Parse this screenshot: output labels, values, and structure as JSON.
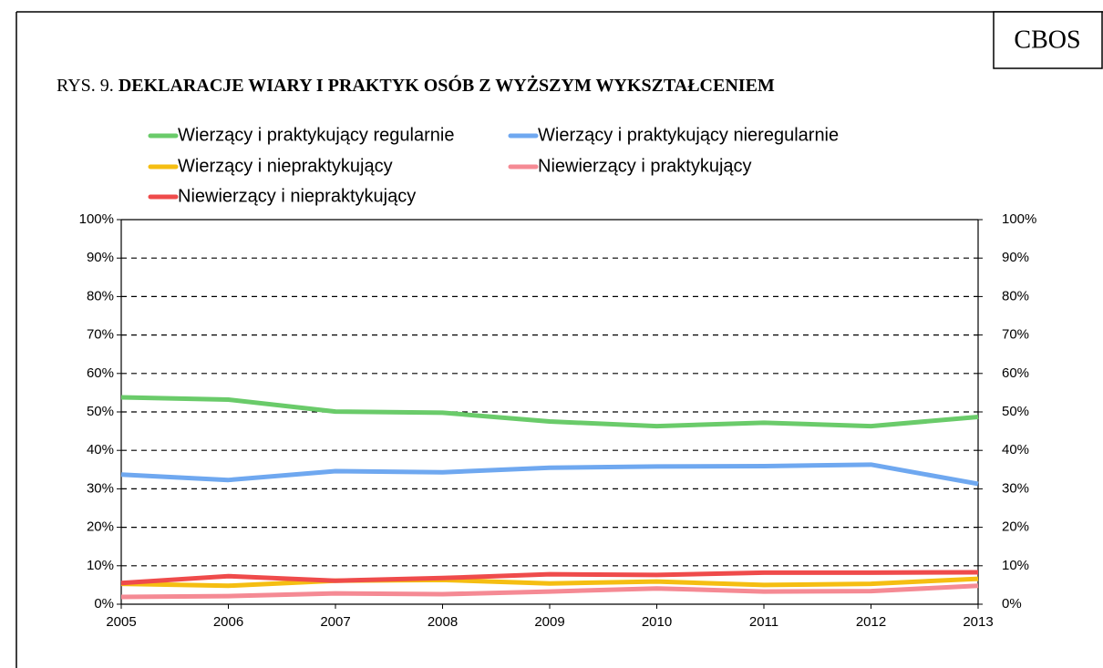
{
  "chart_data": {
    "type": "line",
    "badge": "CBOS",
    "figure_label": "RYS. 9.",
    "title": "DEKLARACJE WIARY I PRAKTYK OSÓB Z WYŻSZYM WYKSZTAŁCENIEM",
    "categories": [
      "2005",
      "2006",
      "2007",
      "2008",
      "2009",
      "2010",
      "2011",
      "2012",
      "2013"
    ],
    "series": [
      {
        "name": "Wierzący i praktykujący regularnie",
        "color": "#6acb6a",
        "values": [
          53.8,
          53.2,
          50.1,
          49.8,
          47.5,
          46.3,
          47.2,
          46.3,
          48.7
        ]
      },
      {
        "name": "Wierzący i praktykujący nieregularnie",
        "color": "#6fa8f0",
        "values": [
          33.7,
          32.3,
          34.6,
          34.3,
          35.5,
          35.8,
          35.9,
          36.3,
          31.3
        ]
      },
      {
        "name": "Wierzący i niepraktykujący",
        "color": "#f5be12",
        "values": [
          5.3,
          4.8,
          6.1,
          6.3,
          5.4,
          5.9,
          5.0,
          5.3,
          6.6
        ]
      },
      {
        "name": "Niewierzący i praktykujący",
        "color": "#f58a94",
        "values": [
          1.9,
          2.1,
          2.8,
          2.6,
          3.3,
          4.1,
          3.3,
          3.4,
          4.8
        ]
      },
      {
        "name": "Niewierzący i niepraktykujący",
        "color": "#ef4b4b",
        "values": [
          5.5,
          7.3,
          6.1,
          6.8,
          7.8,
          7.6,
          8.2,
          8.2,
          8.3
        ]
      }
    ],
    "ylim": [
      0,
      100
    ],
    "yticks": [
      {
        "value": 0,
        "label": "0%"
      },
      {
        "value": 10,
        "label": "10%"
      },
      {
        "value": 20,
        "label": "20%"
      },
      {
        "value": 30,
        "label": "30%"
      },
      {
        "value": 40,
        "label": "40%"
      },
      {
        "value": 50,
        "label": "50%"
      },
      {
        "value": 60,
        "label": "60%"
      },
      {
        "value": 70,
        "label": "70%"
      },
      {
        "value": 80,
        "label": "80%"
      },
      {
        "value": 90,
        "label": "90%"
      },
      {
        "value": 100,
        "label": "100%"
      }
    ],
    "grid": true
  }
}
